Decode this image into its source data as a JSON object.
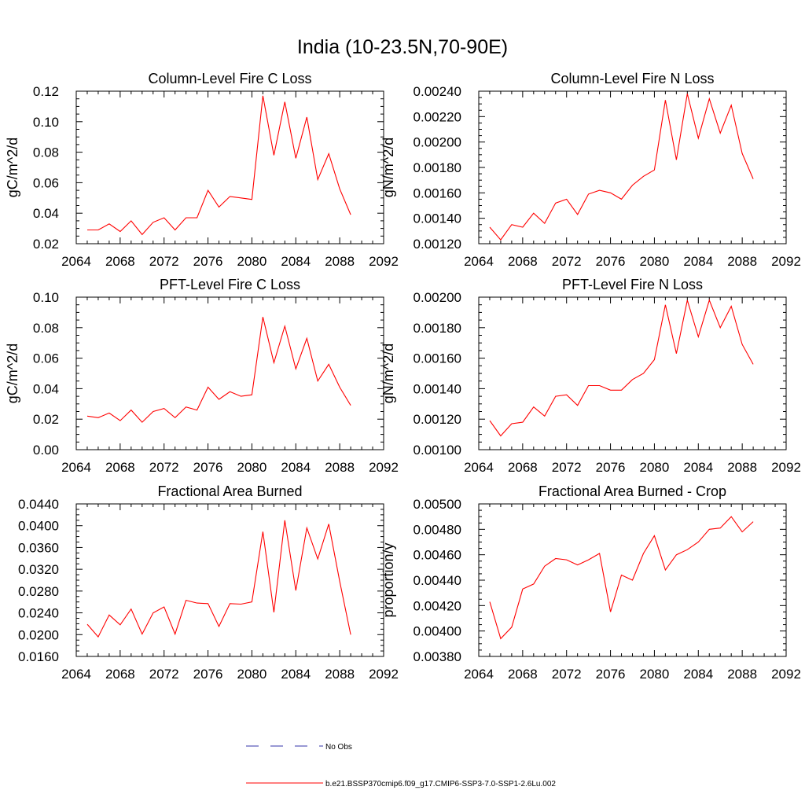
{
  "figure_title": "India (10-23.5N,70-90E)",
  "legend": {
    "entries": [
      {
        "label": "No Obs",
        "color": "#3333aa",
        "style": "dashed"
      },
      {
        "label": "b.e21.BSSP370cmip6.f09_g17.CMIP6-SSP3-7.0-SSP1-2.6Lu.002",
        "color": "#ff0000",
        "style": "solid"
      }
    ]
  },
  "chart_data": [
    {
      "type": "line",
      "title": "Column-Level Fire C Loss",
      "ylabel": "gC/m^2/d",
      "xlabel": "",
      "xlim": [
        2064,
        2092
      ],
      "ylim": [
        0.02,
        0.12
      ],
      "xticks": [
        "2064",
        "2068",
        "2072",
        "2076",
        "2080",
        "2084",
        "2088",
        "2092"
      ],
      "yticks": [
        "0.02",
        "0.04",
        "0.06",
        "0.08",
        "0.10",
        "0.12"
      ],
      "grid": false,
      "series": [
        {
          "color": "#ff0000",
          "x": [
            2065,
            2066,
            2067,
            2068,
            2069,
            2070,
            2071,
            2072,
            2073,
            2074,
            2075,
            2076,
            2077,
            2078,
            2079,
            2080,
            2081,
            2082,
            2083,
            2084,
            2085,
            2086,
            2087,
            2088,
            2089
          ],
          "y": [
            0.029,
            0.029,
            0.033,
            0.028,
            0.035,
            0.026,
            0.034,
            0.037,
            0.029,
            0.037,
            0.037,
            0.055,
            0.044,
            0.051,
            0.05,
            0.049,
            0.117,
            0.078,
            0.113,
            0.076,
            0.103,
            0.062,
            0.079,
            0.056,
            0.039
          ]
        }
      ]
    },
    {
      "type": "line",
      "title": "Column-Level Fire N Loss",
      "ylabel": "gN/m^2/d",
      "xlabel": "",
      "xlim": [
        2064,
        2092
      ],
      "ylim": [
        0.0012,
        0.0024
      ],
      "xticks": [
        "2064",
        "2068",
        "2072",
        "2076",
        "2080",
        "2084",
        "2088",
        "2092"
      ],
      "yticks": [
        "0.00120",
        "0.00140",
        "0.00160",
        "0.00180",
        "0.00200",
        "0.00220",
        "0.00240"
      ],
      "grid": false,
      "series": [
        {
          "color": "#ff0000",
          "x": [
            2065,
            2066,
            2067,
            2068,
            2069,
            2070,
            2071,
            2072,
            2073,
            2074,
            2075,
            2076,
            2077,
            2078,
            2079,
            2080,
            2081,
            2082,
            2083,
            2084,
            2085,
            2086,
            2087,
            2088,
            2089
          ],
          "y": [
            0.00133,
            0.00123,
            0.00135,
            0.00133,
            0.00144,
            0.00136,
            0.00152,
            0.00155,
            0.00143,
            0.00159,
            0.00162,
            0.0016,
            0.00155,
            0.00166,
            0.00173,
            0.00178,
            0.00233,
            0.00186,
            0.00238,
            0.00203,
            0.00234,
            0.00207,
            0.00229,
            0.00191,
            0.00171
          ]
        }
      ]
    },
    {
      "type": "line",
      "title": "PFT-Level Fire C Loss",
      "ylabel": "gC/m^2/d",
      "xlabel": "",
      "xlim": [
        2064,
        2092
      ],
      "ylim": [
        0.0,
        0.1
      ],
      "xticks": [
        "2064",
        "2068",
        "2072",
        "2076",
        "2080",
        "2084",
        "2088",
        "2092"
      ],
      "yticks": [
        "0.00",
        "0.02",
        "0.04",
        "0.06",
        "0.08",
        "0.10"
      ],
      "grid": false,
      "series": [
        {
          "color": "#ff0000",
          "x": [
            2065,
            2066,
            2067,
            2068,
            2069,
            2070,
            2071,
            2072,
            2073,
            2074,
            2075,
            2076,
            2077,
            2078,
            2079,
            2080,
            2081,
            2082,
            2083,
            2084,
            2085,
            2086,
            2087,
            2088,
            2089
          ],
          "y": [
            0.022,
            0.021,
            0.024,
            0.019,
            0.026,
            0.018,
            0.025,
            0.027,
            0.021,
            0.028,
            0.026,
            0.041,
            0.033,
            0.038,
            0.035,
            0.036,
            0.087,
            0.057,
            0.081,
            0.053,
            0.073,
            0.045,
            0.056,
            0.041,
            0.029
          ]
        }
      ]
    },
    {
      "type": "line",
      "title": "PFT-Level Fire N Loss",
      "ylabel": "gN/m^2/d",
      "xlabel": "",
      "xlim": [
        2064,
        2092
      ],
      "ylim": [
        0.001,
        0.002
      ],
      "xticks": [
        "2064",
        "2068",
        "2072",
        "2076",
        "2080",
        "2084",
        "2088",
        "2092"
      ],
      "yticks": [
        "0.00100",
        "0.00120",
        "0.00140",
        "0.00160",
        "0.00180",
        "0.00200"
      ],
      "grid": false,
      "series": [
        {
          "color": "#ff0000",
          "x": [
            2065,
            2066,
            2067,
            2068,
            2069,
            2070,
            2071,
            2072,
            2073,
            2074,
            2075,
            2076,
            2077,
            2078,
            2079,
            2080,
            2081,
            2082,
            2083,
            2084,
            2085,
            2086,
            2087,
            2088,
            2089
          ],
          "y": [
            0.00119,
            0.00109,
            0.00117,
            0.00118,
            0.00128,
            0.00122,
            0.00135,
            0.00136,
            0.00129,
            0.00142,
            0.00142,
            0.00139,
            0.00139,
            0.00146,
            0.0015,
            0.00159,
            0.00195,
            0.00163,
            0.00198,
            0.00174,
            0.00198,
            0.0018,
            0.00194,
            0.00169,
            0.00156
          ]
        }
      ]
    },
    {
      "type": "line",
      "title": "Fractional Area Burned",
      "ylabel": "",
      "xlabel": "",
      "xlim": [
        2064,
        2092
      ],
      "ylim": [
        0.016,
        0.044
      ],
      "xticks": [
        "2064",
        "2068",
        "2072",
        "2076",
        "2080",
        "2084",
        "2088",
        "2092"
      ],
      "yticks": [
        "0.0160",
        "0.0200",
        "0.0240",
        "0.0280",
        "0.0320",
        "0.0360",
        "0.0400",
        "0.0440"
      ],
      "grid": false,
      "series": [
        {
          "color": "#ff0000",
          "x": [
            2065,
            2066,
            2067,
            2068,
            2069,
            2070,
            2071,
            2072,
            2073,
            2074,
            2075,
            2076,
            2077,
            2078,
            2079,
            2080,
            2081,
            2082,
            2083,
            2084,
            2085,
            2086,
            2087,
            2088,
            2089
          ],
          "y": [
            0.0219,
            0.0196,
            0.0236,
            0.0218,
            0.0247,
            0.0201,
            0.024,
            0.0251,
            0.0201,
            0.0263,
            0.0258,
            0.0257,
            0.0215,
            0.0257,
            0.0256,
            0.026,
            0.0389,
            0.0241,
            0.041,
            0.0281,
            0.0396,
            0.0339,
            0.0403,
            0.0298,
            0.02
          ]
        }
      ]
    },
    {
      "type": "line",
      "title": "Fractional Area Burned - Crop",
      "ylabel": "proportion/y",
      "xlabel": "",
      "xlim": [
        2064,
        2092
      ],
      "ylim": [
        0.0038,
        0.005
      ],
      "xticks": [
        "2064",
        "2068",
        "2072",
        "2076",
        "2080",
        "2084",
        "2088",
        "2092"
      ],
      "yticks": [
        "0.00380",
        "0.00400",
        "0.00420",
        "0.00440",
        "0.00460",
        "0.00480",
        "0.00500"
      ],
      "grid": false,
      "series": [
        {
          "color": "#ff0000",
          "x": [
            2065,
            2066,
            2067,
            2068,
            2069,
            2070,
            2071,
            2072,
            2073,
            2074,
            2075,
            2076,
            2077,
            2078,
            2079,
            2080,
            2081,
            2082,
            2083,
            2084,
            2085,
            2086,
            2087,
            2088,
            2089
          ],
          "y": [
            0.00423,
            0.00394,
            0.00403,
            0.00433,
            0.00437,
            0.00451,
            0.00457,
            0.00456,
            0.00452,
            0.00456,
            0.00461,
            0.00415,
            0.00444,
            0.0044,
            0.00461,
            0.00475,
            0.00448,
            0.0046,
            0.00464,
            0.0047,
            0.0048,
            0.00481,
            0.0049,
            0.00478,
            0.00486
          ]
        }
      ]
    }
  ]
}
